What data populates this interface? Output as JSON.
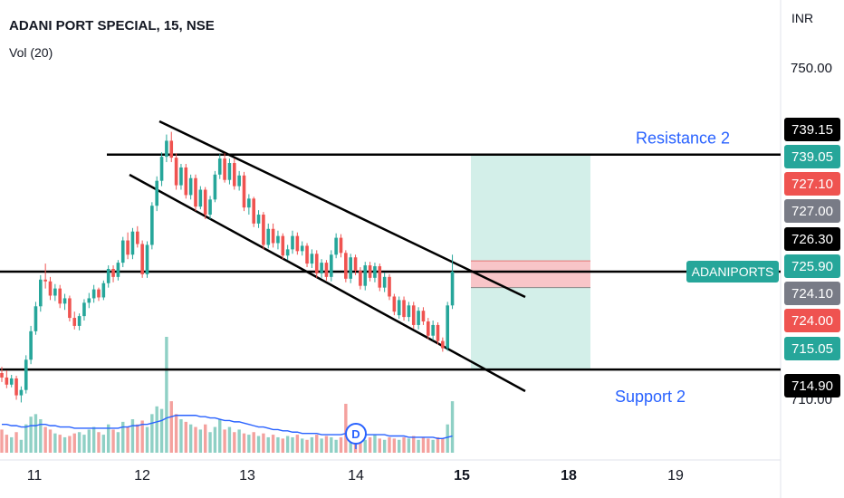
{
  "header": {
    "title": "ADANI PORT SPECIAL, 15, NSE",
    "indicator": "Vol (20)",
    "currency": "INR"
  },
  "colors": {
    "up": "#26a69a",
    "down": "#ef5350",
    "volume_up": "#8fd0c5",
    "volume_down": "#f4a19e",
    "ma_line": "#2962ff",
    "annotation_text": "#2962ff",
    "line": "#000000",
    "profit_zone": "#d3efe9",
    "stop_zone": "#f8c5c8"
  },
  "chart_data": {
    "type": "candlestick",
    "symbol": "ADANIPORTS",
    "interval": "15",
    "price_ylim": [
      708,
      756
    ],
    "time_labels": [
      "11",
      "12",
      "13",
      "14",
      "15",
      "18",
      "19"
    ],
    "price_tick_labels": [
      "750.00",
      "710.00"
    ],
    "price_tags": [
      {
        "label": "739.15",
        "value": 739.15,
        "color": "#000000"
      },
      {
        "label": "739.05",
        "value": 739.05,
        "color": "#26a69a"
      },
      {
        "label": "727.10",
        "value": 727.1,
        "color": "#ef5350"
      },
      {
        "label": "727.00",
        "value": 727.0,
        "color": "#787b86"
      },
      {
        "label": "726.30",
        "value": 726.3,
        "color": "#000000"
      },
      {
        "label": "725.90",
        "value": 725.9,
        "color": "#26a69a"
      },
      {
        "label": "724.10",
        "value": 724.1,
        "color": "#787b86"
      },
      {
        "label": "724.00",
        "value": 724.0,
        "color": "#ef5350"
      },
      {
        "label": "715.05",
        "value": 715.05,
        "color": "#26a69a"
      },
      {
        "label": "714.90",
        "value": 714.9,
        "color": "#000000"
      }
    ],
    "current_price_label": "ADANIPORTS",
    "current_price": 725.9,
    "annotations": [
      {
        "text": "Resistance 2",
        "price": 739.05
      },
      {
        "text": "Support 2",
        "price": 714.9
      }
    ],
    "horizontal_levels": [
      {
        "name": "resistance-2",
        "price": 739.05
      },
      {
        "name": "pivot-level",
        "price": 725.9
      },
      {
        "name": "support-2",
        "price": 714.9
      }
    ],
    "event_marker": "D",
    "candles_ohlc": [
      [
        714.5,
        715.2,
        713.5,
        714.0
      ],
      [
        714.0,
        714.8,
        712.8,
        713.2
      ],
      [
        713.2,
        714.3,
        712.9,
        713.9
      ],
      [
        713.9,
        714.2,
        711.5,
        712.0
      ],
      [
        712.0,
        713.0,
        711.2,
        712.6
      ],
      [
        712.6,
        716.5,
        712.2,
        716.0
      ],
      [
        716.0,
        719.8,
        715.5,
        719.2
      ],
      [
        719.2,
        722.5,
        718.8,
        722.0
      ],
      [
        722.0,
        725.5,
        721.4,
        725.0
      ],
      [
        725.0,
        726.8,
        724.0,
        724.8
      ],
      [
        724.8,
        725.3,
        722.7,
        723.2
      ],
      [
        723.2,
        724.5,
        722.6,
        724.0
      ],
      [
        724.0,
        724.4,
        721.8,
        722.3
      ],
      [
        722.3,
        723.4,
        721.6,
        722.9
      ],
      [
        722.9,
        723.2,
        720.3,
        720.7
      ],
      [
        720.7,
        721.4,
        719.4,
        719.8
      ],
      [
        719.8,
        721.2,
        719.3,
        720.9
      ],
      [
        720.9,
        722.8,
        720.4,
        722.4
      ],
      [
        722.4,
        723.5,
        721.8,
        722.9
      ],
      [
        722.9,
        724.4,
        722.4,
        723.9
      ],
      [
        723.9,
        724.1,
        722.6,
        723.0
      ],
      [
        723.0,
        724.9,
        722.7,
        724.6
      ],
      [
        724.6,
        726.6,
        724.1,
        726.2
      ],
      [
        726.2,
        726.6,
        724.7,
        725.3
      ],
      [
        725.3,
        727.2,
        724.9,
        726.9
      ],
      [
        726.9,
        729.8,
        726.4,
        729.4
      ],
      [
        729.4,
        730.3,
        727.3,
        727.8
      ],
      [
        727.8,
        730.8,
        727.3,
        730.4
      ],
      [
        730.4,
        731.0,
        728.6,
        729.0
      ],
      [
        729.0,
        729.4,
        725.2,
        725.6
      ],
      [
        725.6,
        729.3,
        725.2,
        728.9
      ],
      [
        728.9,
        733.7,
        728.4,
        733.3
      ],
      [
        733.3,
        736.6,
        732.7,
        736.1
      ],
      [
        736.1,
        739.3,
        735.5,
        738.8
      ],
      [
        738.8,
        741.3,
        738.2,
        740.6
      ],
      [
        740.6,
        741.6,
        738.2,
        738.7
      ],
      [
        738.7,
        739.2,
        735.1,
        735.6
      ],
      [
        735.6,
        738.0,
        735.1,
        737.6
      ],
      [
        737.6,
        738.0,
        734.1,
        734.5
      ],
      [
        734.5,
        736.8,
        734.0,
        736.4
      ],
      [
        736.4,
        736.8,
        732.7,
        733.2
      ],
      [
        733.2,
        735.5,
        732.9,
        735.1
      ],
      [
        735.1,
        735.4,
        731.8,
        732.3
      ],
      [
        732.3,
        734.4,
        731.8,
        734.0
      ],
      [
        734.0,
        737.2,
        733.7,
        736.8
      ],
      [
        736.8,
        739.1,
        736.3,
        738.6
      ],
      [
        738.6,
        739.2,
        735.9,
        736.2
      ],
      [
        736.2,
        738.6,
        735.7,
        738.1
      ],
      [
        738.1,
        738.6,
        735.1,
        735.5
      ],
      [
        735.5,
        737.2,
        735.0,
        736.7
      ],
      [
        736.7,
        737.1,
        732.7,
        733.1
      ],
      [
        733.1,
        734.6,
        732.3,
        734.1
      ],
      [
        734.1,
        734.3,
        730.9,
        731.3
      ],
      [
        731.3,
        732.8,
        730.8,
        732.3
      ],
      [
        732.3,
        732.6,
        728.4,
        728.9
      ],
      [
        728.9,
        731.3,
        728.5,
        730.7
      ],
      [
        730.7,
        731.3,
        728.6,
        729.1
      ],
      [
        729.1,
        730.5,
        728.4,
        729.9
      ],
      [
        729.9,
        730.2,
        727.3,
        727.7
      ],
      [
        727.7,
        728.9,
        727.2,
        728.4
      ],
      [
        728.4,
        730.5,
        727.9,
        729.9
      ],
      [
        729.9,
        730.3,
        727.8,
        728.2
      ],
      [
        728.2,
        729.3,
        727.7,
        728.8
      ],
      [
        728.8,
        729.1,
        726.4,
        726.8
      ],
      [
        726.8,
        728.4,
        726.3,
        727.9
      ],
      [
        727.9,
        728.3,
        725.2,
        725.7
      ],
      [
        725.7,
        727.3,
        725.2,
        726.9
      ],
      [
        726.9,
        727.2,
        724.9,
        725.3
      ],
      [
        725.3,
        728.3,
        724.8,
        727.8
      ],
      [
        727.8,
        730.2,
        727.4,
        729.7
      ],
      [
        729.7,
        730.1,
        727.5,
        728.0
      ],
      [
        728.0,
        728.3,
        724.7,
        725.1
      ],
      [
        725.1,
        727.9,
        724.6,
        727.5
      ],
      [
        727.5,
        727.8,
        725.5,
        726.0
      ],
      [
        726.0,
        726.4,
        723.9,
        724.3
      ],
      [
        724.3,
        727.0,
        723.8,
        726.6
      ],
      [
        726.6,
        727.0,
        724.8,
        725.2
      ],
      [
        725.2,
        726.9,
        724.7,
        726.5
      ],
      [
        726.5,
        726.8,
        723.7,
        724.1
      ],
      [
        724.1,
        725.8,
        723.6,
        725.3
      ],
      [
        725.3,
        725.6,
        722.7,
        723.1
      ],
      [
        723.1,
        723.4,
        721.0,
        721.4
      ],
      [
        721.0,
        723.1,
        720.6,
        722.7
      ],
      [
        722.7,
        723.1,
        720.4,
        720.8
      ],
      [
        720.8,
        722.5,
        720.3,
        722.1
      ],
      [
        722.1,
        722.5,
        719.5,
        719.9
      ],
      [
        719.9,
        721.9,
        719.4,
        721.5
      ],
      [
        721.5,
        721.9,
        719.9,
        720.3
      ],
      [
        720.3,
        720.7,
        718.3,
        718.7
      ],
      [
        718.7,
        720.4,
        718.2,
        719.9
      ],
      [
        719.9,
        720.2,
        717.7,
        718.1
      ],
      [
        718.1,
        718.5,
        716.9,
        717.3
      ],
      [
        717.3,
        722.5,
        717.0,
        722.1
      ],
      [
        722.1,
        727.8,
        721.7,
        725.9
      ]
    ],
    "volumes": [
      18,
      14,
      12,
      16,
      10,
      22,
      28,
      30,
      26,
      20,
      18,
      15,
      14,
      12,
      13,
      15,
      16,
      14,
      18,
      20,
      16,
      14,
      22,
      18,
      16,
      24,
      20,
      26,
      22,
      25,
      20,
      30,
      36,
      34,
      90,
      40,
      30,
      26,
      24,
      22,
      20,
      18,
      22,
      16,
      20,
      26,
      18,
      20,
      16,
      18,
      15,
      14,
      16,
      13,
      15,
      12,
      14,
      12,
      11,
      13,
      12,
      14,
      11,
      10,
      12,
      14,
      11,
      13,
      12,
      10,
      12,
      38,
      18,
      14,
      12,
      10,
      12,
      14,
      11,
      10,
      12,
      11,
      10,
      12,
      11,
      13,
      10,
      12,
      11,
      10,
      12,
      11,
      22,
      40
    ],
    "volume_ma": [
      22,
      22,
      21,
      21,
      20,
      20,
      21,
      21,
      22,
      22,
      21,
      21,
      20,
      20,
      20,
      19,
      19,
      19,
      19,
      19,
      19,
      19,
      19,
      19,
      19,
      20,
      20,
      21,
      21,
      22,
      22,
      23,
      24,
      25,
      27,
      28,
      29,
      29,
      29,
      29,
      29,
      28,
      28,
      27,
      27,
      26,
      25,
      25,
      24,
      24,
      23,
      22,
      21,
      20,
      20,
      19,
      18,
      18,
      17,
      17,
      16,
      16,
      15,
      15,
      15,
      15,
      14,
      14,
      14,
      14,
      14,
      15,
      15,
      15,
      15,
      14,
      14,
      14,
      14,
      14,
      13,
      13,
      13,
      13,
      12,
      12,
      12,
      12,
      12,
      12,
      11,
      11,
      12,
      13
    ]
  }
}
